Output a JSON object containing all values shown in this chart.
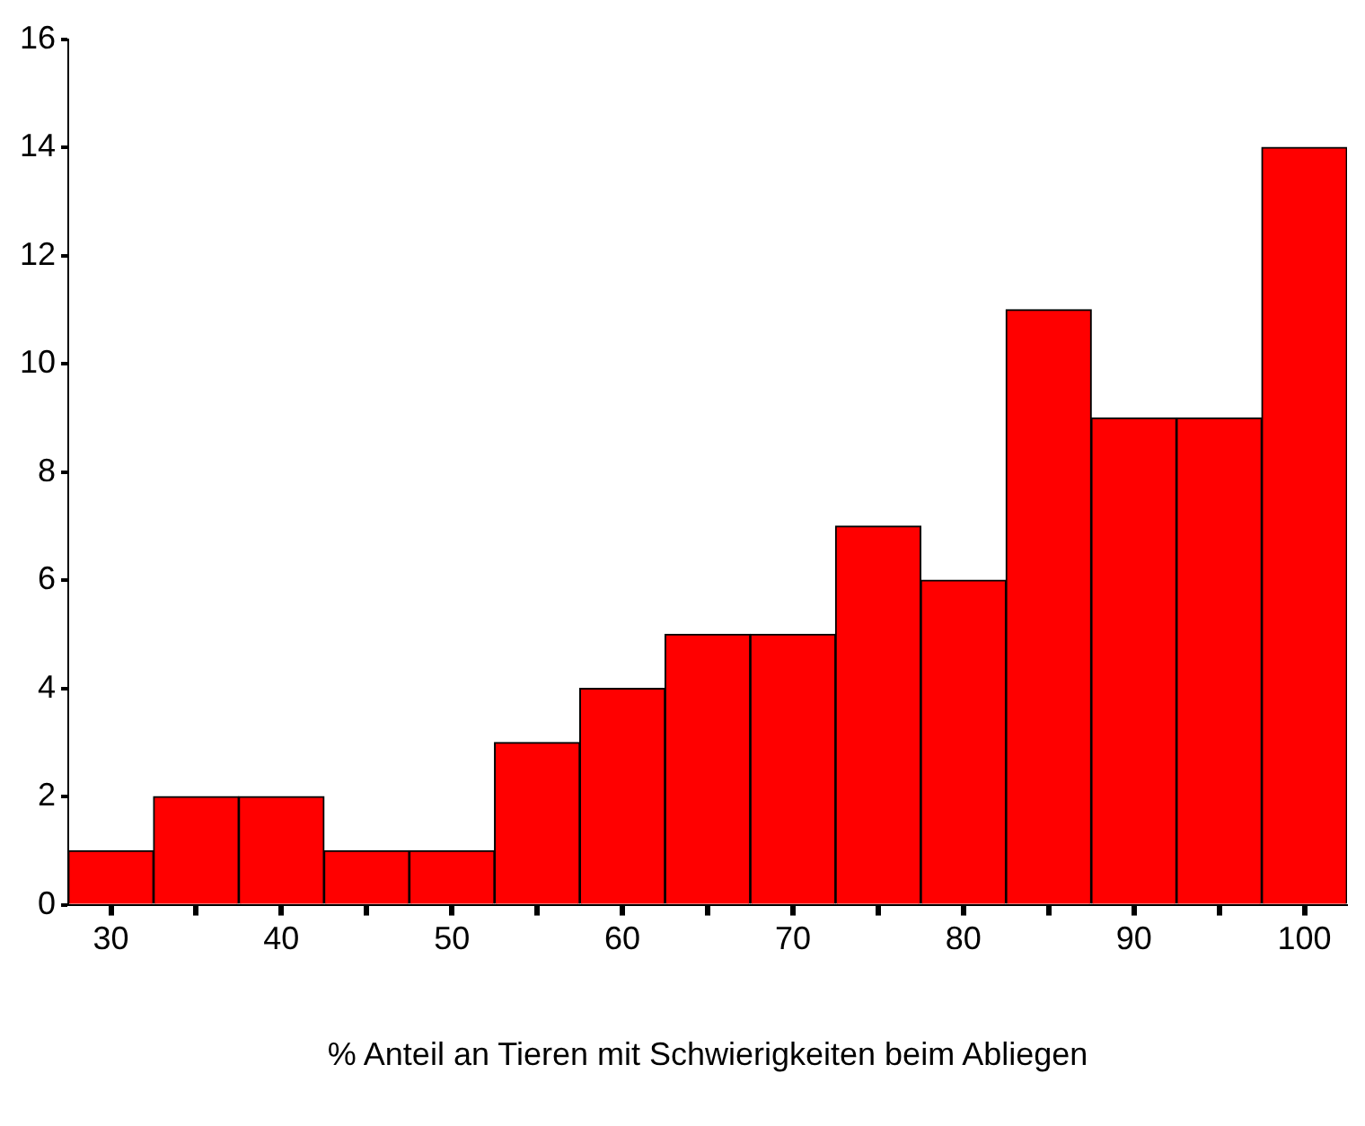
{
  "chart_data": {
    "type": "histogram",
    "xlabel": "% Anteil an Tieren mit Schwierigkeiten beim Abliegen",
    "bins": [
      27.5,
      32.5,
      37.5,
      42.5,
      47.5,
      52.5,
      57.5,
      62.5,
      67.5,
      72.5,
      77.5,
      82.5,
      87.5,
      92.5,
      97.5,
      102.5
    ],
    "values": [
      1,
      2,
      2,
      1,
      1,
      3,
      4,
      5,
      5,
      7,
      6,
      11,
      9,
      9,
      14
    ],
    "color": "#ff0000",
    "xlim": [
      27.5,
      102.5
    ],
    "xticks": [
      30,
      {
        "value": 35,
        "label": null
      },
      40,
      {
        "value": 45,
        "label": null
      },
      50,
      {
        "value": 55,
        "label": null
      },
      60,
      {
        "value": 65,
        "label": null
      },
      70,
      {
        "value": 75,
        "label": null
      },
      80,
      {
        "value": 85,
        "label": null
      },
      90,
      {
        "value": 95,
        "label": null
      },
      100
    ],
    "ylim": [
      0,
      16
    ],
    "yticks": [
      0,
      2,
      4,
      6,
      8,
      10,
      12,
      14,
      16
    ],
    "grid": false,
    "legend": false
  }
}
